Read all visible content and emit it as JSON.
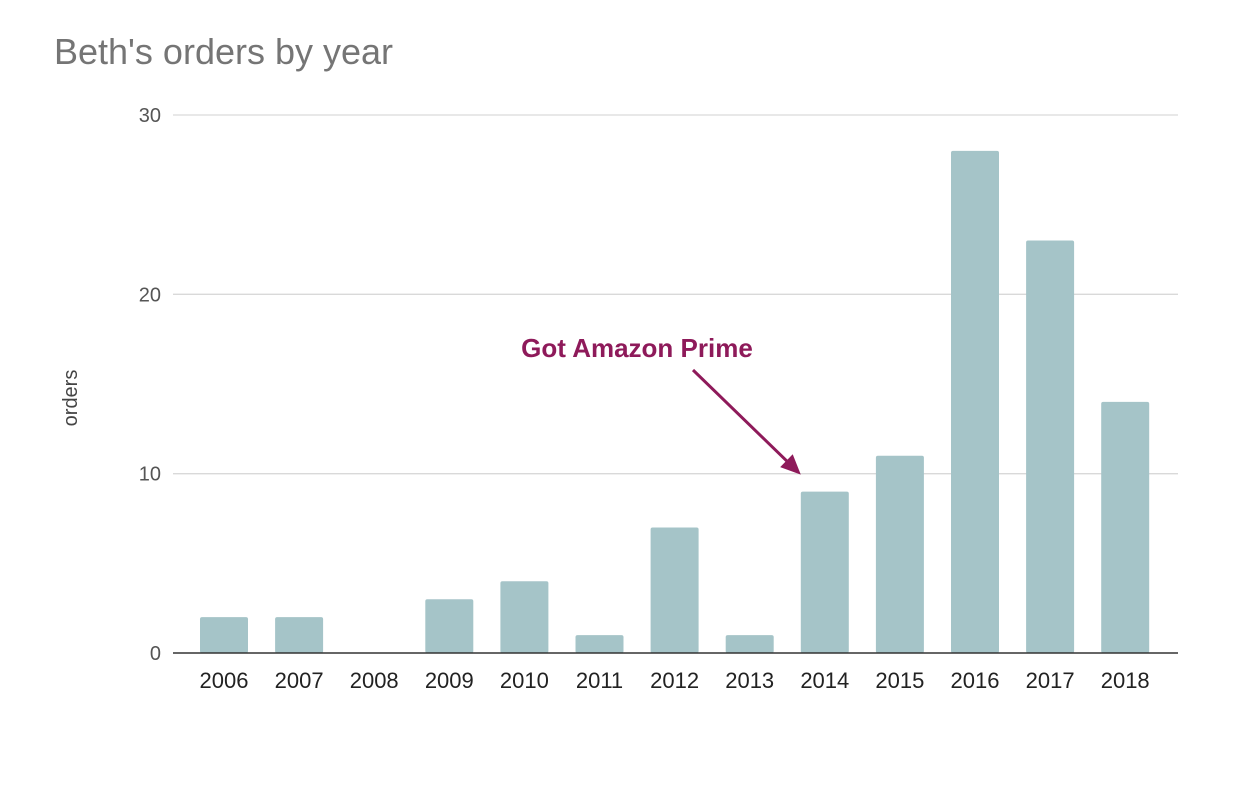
{
  "chart_data": {
    "type": "bar",
    "title": "Beth's orders by year",
    "xlabel": "",
    "ylabel": "orders",
    "categories": [
      "2006",
      "2007",
      "2008",
      "2009",
      "2010",
      "2011",
      "2012",
      "2013",
      "2014",
      "2015",
      "2016",
      "2017",
      "2018"
    ],
    "values": [
      2,
      2,
      0,
      3,
      4,
      1,
      7,
      1,
      9,
      11,
      28,
      23,
      14
    ],
    "ylim": [
      0,
      30
    ],
    "yticks": [
      0,
      10,
      20,
      30
    ],
    "grid": true,
    "legend": "none",
    "bar_color": "#a5c4c8",
    "annotation": {
      "text": "Got Amazon Prime",
      "target_category": "2014",
      "color": "#8e1a5a"
    }
  }
}
